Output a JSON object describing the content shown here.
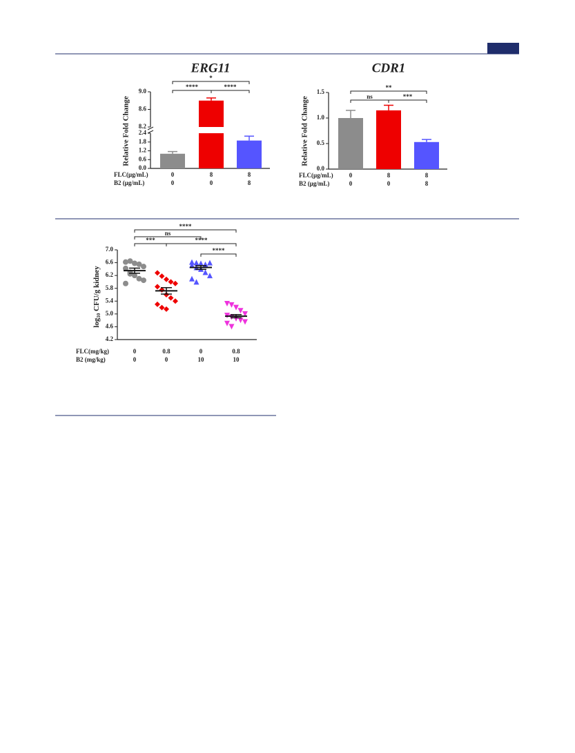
{
  "chart_data": [
    {
      "type": "bar",
      "title": "ERG11",
      "y_label": "Relative Fold Change",
      "categories": [
        null,
        null,
        null
      ],
      "values": [
        1.0,
        8.8,
        1.9
      ],
      "errors": [
        0.15,
        0.06,
        0.3
      ],
      "colors": [
        "#8c8c8c",
        "#ee0000",
        "#5555ff"
      ],
      "ylim": [
        0,
        9
      ],
      "ybreak": [
        2.4,
        8.2
      ],
      "yticks": [
        {
          "value": 0,
          "label": "0.0"
        },
        0.6,
        1.2,
        1.8,
        2.4,
        8.2,
        8.6,
        {
          "value": 9,
          "label": "9.0"
        }
      ],
      "brackets": [
        {
          "from": 0,
          "to": 1,
          "text": "****"
        },
        {
          "from": 1,
          "to": 2,
          "text": "****"
        },
        {
          "from": 0,
          "to": 2,
          "text": "*"
        }
      ],
      "conditions": [
        {
          "label": "FLC(μg/mL)",
          "values": [
            0,
            8,
            8
          ]
        },
        {
          "label": "B2  (μg/mL)",
          "values": [
            0,
            0,
            8
          ]
        }
      ]
    },
    {
      "type": "bar",
      "title": "CDR1",
      "y_label": "Relative Fold Change",
      "categories": [
        null,
        null,
        null
      ],
      "values": [
        1.0,
        1.15,
        0.53
      ],
      "errors": [
        0.15,
        0.1,
        0.05
      ],
      "colors": [
        "#8c8c8c",
        "#ee0000",
        "#5555ff"
      ],
      "ylim": [
        0,
        1.5
      ],
      "yticks": [
        {
          "value": 0,
          "label": "0.0"
        },
        0.5,
        {
          "value": 1,
          "label": "1.0"
        },
        1.5
      ],
      "brackets": [
        {
          "from": 0,
          "to": 1,
          "text": "ns"
        },
        {
          "from": 1,
          "to": 2,
          "text": "***"
        },
        {
          "from": 0,
          "to": 2,
          "text": "**"
        }
      ],
      "conditions": [
        {
          "label": "FLC(μg/mL)",
          "values": [
            0,
            8,
            8
          ]
        },
        {
          "label": "B2  (μg/mL)",
          "values": [
            0,
            0,
            8
          ]
        }
      ]
    },
    {
      "type": "scatter",
      "y_label": {
        "base": "log",
        "sub": "10",
        "rest": " CFU/g  kidney"
      },
      "ylim": [
        4.2,
        7.0
      ],
      "yticks": [
        4.2,
        4.6,
        {
          "value": 5,
          "label": "5.0"
        },
        5.4,
        5.8,
        6.2,
        6.6,
        {
          "value": 7,
          "label": "7.0"
        }
      ],
      "series": [
        {
          "color": "#8c8c8c",
          "marker": "circle",
          "values": [
            6.62,
            6.65,
            6.58,
            6.55,
            6.48,
            6.42,
            6.3,
            6.2,
            6.1,
            6.05,
            5.95,
            6.25
          ],
          "mean": 6.35,
          "sem": 0.08
        },
        {
          "color": "#ee0000",
          "marker": "diamond",
          "values": [
            6.28,
            6.18,
            6.08,
            6.0,
            5.95,
            5.85,
            5.75,
            5.6,
            5.5,
            5.4,
            5.3,
            5.2,
            5.15
          ],
          "mean": 5.72,
          "sem": 0.1
        },
        {
          "color": "#5555ff",
          "marker": "triangle",
          "values": [
            6.62,
            6.6,
            6.58,
            6.55,
            6.6,
            6.52,
            6.45,
            6.4,
            6.3,
            6.2,
            6.1,
            6.0
          ],
          "mean": 6.45,
          "sem": 0.06
        },
        {
          "color": "#ee33dd",
          "marker": "triangle-down",
          "values": [
            5.32,
            5.28,
            5.2,
            5.1,
            5.0,
            4.95,
            4.9,
            4.85,
            4.8,
            4.75,
            4.7,
            4.6
          ],
          "mean": 4.93,
          "sem": 0.05
        }
      ],
      "brackets": [
        {
          "from": 0,
          "to": 3,
          "text": "****"
        },
        {
          "from": 0,
          "to": 2,
          "text": "ns"
        },
        {
          "from": 0,
          "to": 1,
          "text": "***"
        },
        {
          "from": 1,
          "to": 3,
          "text": "****"
        },
        {
          "from": 2,
          "to": 3,
          "text": "****"
        }
      ],
      "conditions": [
        {
          "label": "FLC(mg/kg)",
          "values": [
            0,
            0.8,
            0,
            0.8
          ]
        },
        {
          "label": "B2   (mg/kg)",
          "values": [
            0,
            0,
            10,
            10
          ]
        }
      ]
    }
  ]
}
